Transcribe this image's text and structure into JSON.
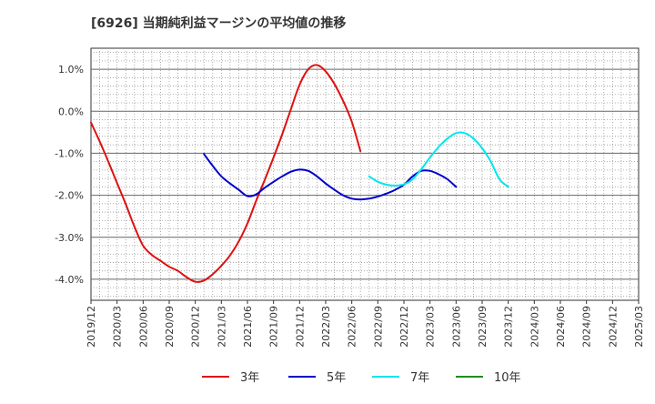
{
  "chart_data": {
    "type": "line",
    "title": "[6926]  当期純利益マージンの平均値の推移",
    "xlabel": "",
    "ylabel": "",
    "x_ticks": [
      "2019/12",
      "2020/03",
      "2020/06",
      "2020/09",
      "2020/12",
      "2021/03",
      "2021/06",
      "2021/09",
      "2021/12",
      "2022/03",
      "2022/06",
      "2022/09",
      "2022/12",
      "2023/03",
      "2023/06",
      "2023/09",
      "2023/12",
      "2024/03",
      "2024/06",
      "2024/09",
      "2024/12",
      "2025/03"
    ],
    "y_ticks": [
      "1.0%",
      "0.0%",
      "-1.0%",
      "-2.0%",
      "-3.0%",
      "-4.0%"
    ],
    "y_tick_values": [
      1.0,
      0.0,
      -1.0,
      -2.0,
      -3.0,
      -4.0
    ],
    "ylim": [
      -4.5,
      1.5
    ],
    "grid": true,
    "legend_position": "bottom",
    "series": [
      {
        "name": "3年",
        "color": "#dd1111",
        "values": [
          -0.27,
          -0.72,
          -1.2,
          -1.71,
          -2.21,
          -2.75,
          -3.2,
          -3.42,
          -3.56,
          -3.7,
          -3.8,
          -3.95,
          -4.06,
          -4.03,
          -3.88,
          -3.68,
          -3.43,
          -3.1,
          -2.67,
          -2.13,
          -1.63,
          -1.1,
          -0.55,
          0.05,
          0.63,
          1.0,
          1.1,
          0.95,
          0.65,
          0.25,
          -0.25,
          -0.95
        ]
      },
      {
        "name": "5年",
        "color": "#0000cc",
        "values": [
          null,
          null,
          null,
          null,
          null,
          null,
          null,
          null,
          null,
          null,
          null,
          null,
          null,
          -1.02,
          -1.3,
          -1.55,
          -1.72,
          -1.87,
          -2.02,
          -1.98,
          -1.82,
          -1.68,
          -1.55,
          -1.44,
          -1.39,
          -1.42,
          -1.55,
          -1.72,
          -1.87,
          -2.0,
          -2.08,
          -2.1,
          -2.08,
          -2.03,
          -1.96,
          -1.87,
          -1.75,
          -1.55,
          -1.42,
          -1.42,
          -1.5,
          -1.62,
          -1.8
        ]
      },
      {
        "name": "7年",
        "color": "#00e5ee",
        "values": [
          null,
          null,
          null,
          null,
          null,
          null,
          null,
          null,
          null,
          null,
          null,
          null,
          null,
          null,
          null,
          null,
          null,
          null,
          null,
          null,
          null,
          null,
          null,
          null,
          null,
          null,
          null,
          null,
          null,
          null,
          null,
          null,
          -1.55,
          -1.68,
          -1.75,
          -1.77,
          -1.74,
          -1.62,
          -1.38,
          -1.1,
          -0.85,
          -0.65,
          -0.52,
          -0.52,
          -0.65,
          -0.88,
          -1.2,
          -1.62,
          -1.8
        ]
      },
      {
        "name": "10年",
        "color": "#228b22",
        "values": []
      }
    ]
  }
}
